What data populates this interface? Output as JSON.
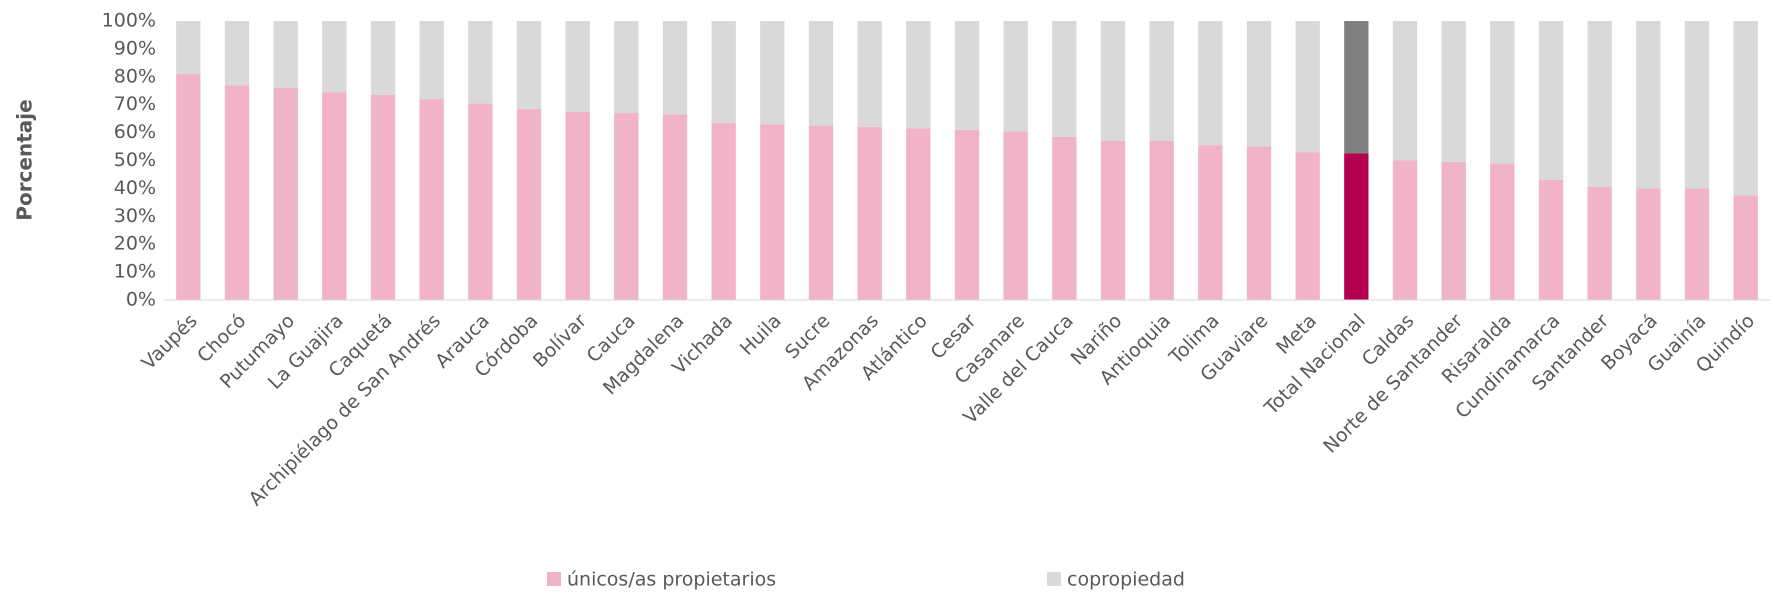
{
  "chart_data": {
    "type": "stacked_bar",
    "y_label": "Porcentaje",
    "categories": [
      "Vaupés",
      "Chocó",
      "Putumayo",
      "La Guajira",
      "Caquetá",
      "Archipiélago de San Andrés",
      "Arauca",
      "Córdoba",
      "Bolívar",
      "Cauca",
      "Magdalena",
      "Vichada",
      "Huila",
      "Sucre",
      "Amazonas",
      "Atlántico",
      "Cesar",
      "Casanare",
      "Valle del Cauca",
      "Nariño",
      "Antioquia",
      "Tolima",
      "Guaviare",
      "Meta",
      "Total Nacional",
      "Caldas",
      "Norte de Santander",
      "Risaralda",
      "Cundinamarca",
      "Santander",
      "Boyacá",
      "Guainía",
      "Quindío"
    ],
    "series": [
      {
        "name": "únicos/as propietarios",
        "color": "#f0b3ca",
        "highlight_color": "#b5004f",
        "values": [
          81,
          77,
          76,
          74.5,
          73.5,
          72,
          70.5,
          68.5,
          67.5,
          67,
          66.5,
          63.5,
          63,
          62.5,
          62,
          61.5,
          61,
          60.5,
          58.5,
          57,
          57,
          55.5,
          55,
          53,
          52.5,
          50,
          49.5,
          49,
          43,
          40.5,
          40,
          40,
          37.5
        ]
      },
      {
        "name": "copropiedad",
        "color": "#d9d9d9",
        "highlight_color": "#808080",
        "values": [
          19,
          23,
          24,
          25.5,
          26.5,
          28,
          29.5,
          31.5,
          32.5,
          33,
          33.5,
          36.5,
          37,
          37.5,
          38,
          38.5,
          39,
          39.5,
          41.5,
          43,
          43,
          44.5,
          45,
          47,
          47.5,
          50,
          50.5,
          51,
          57,
          59.5,
          60,
          60,
          62.5
        ]
      }
    ],
    "highlight_category": "Total Nacional",
    "ylim": [
      0,
      100
    ],
    "yticks": [
      {
        "value": 0,
        "label": "0%"
      },
      {
        "value": 10,
        "label": "10%"
      },
      {
        "value": 20,
        "label": "20%"
      },
      {
        "value": 30,
        "label": "30%"
      },
      {
        "value": 40,
        "label": "40%"
      },
      {
        "value": 50,
        "label": "50%"
      },
      {
        "value": 60,
        "label": "60%"
      },
      {
        "value": 70,
        "label": "70%"
      },
      {
        "value": 80,
        "label": "80%"
      },
      {
        "value": 90,
        "label": "90%"
      },
      {
        "value": 100,
        "label": "100%"
      }
    ],
    "legend": "bottom"
  }
}
